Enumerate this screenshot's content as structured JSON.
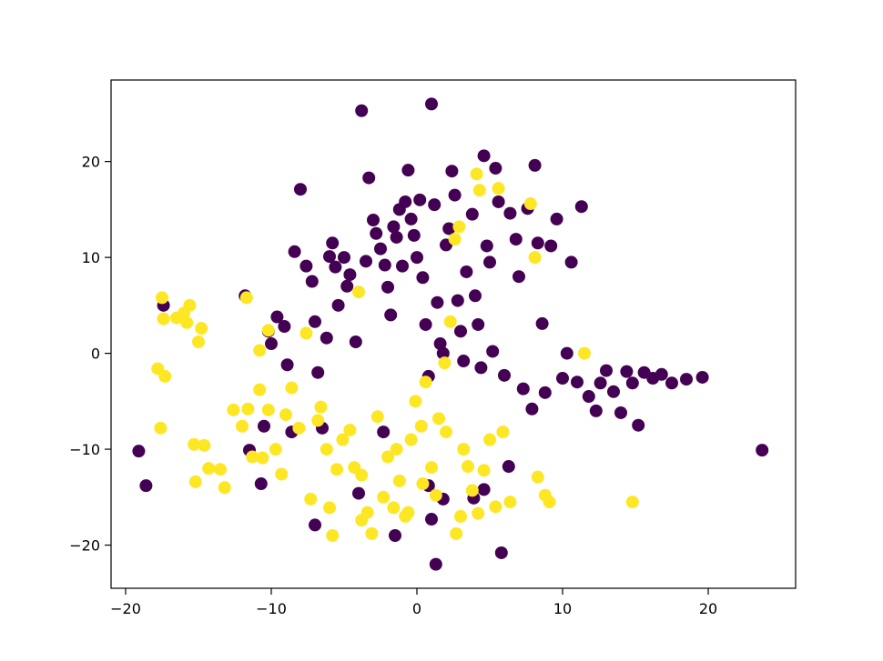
{
  "chart_data": {
    "type": "scatter",
    "title": "",
    "xlabel": "",
    "ylabel": "",
    "xlim": [
      -21,
      26
    ],
    "ylim": [
      -24.5,
      28.5
    ],
    "xticks": [
      -20,
      -10,
      0,
      10,
      20
    ],
    "yticks": [
      -20,
      -10,
      0,
      10,
      20
    ],
    "xtick_labels": [
      "−20",
      "−10",
      "0",
      "10",
      "20"
    ],
    "ytick_labels": [
      "−20",
      "−10",
      "0",
      "10",
      "20"
    ],
    "grid": false,
    "legend": "none",
    "series": [
      {
        "color": "#440154",
        "points": [
          [
            -19.1,
            -10.2
          ],
          [
            -18.6,
            -13.8
          ],
          [
            -17.4,
            5.0
          ],
          [
            -11.8,
            6.0
          ],
          [
            -11.5,
            -10.1
          ],
          [
            -10.7,
            -13.6
          ],
          [
            -10.5,
            -7.6
          ],
          [
            -10.2,
            2.3
          ],
          [
            -10.0,
            1.0
          ],
          [
            -9.6,
            3.8
          ],
          [
            -9.1,
            2.8
          ],
          [
            -8.9,
            -1.2
          ],
          [
            -8.6,
            -8.2
          ],
          [
            -8.4,
            10.6
          ],
          [
            -8.0,
            17.1
          ],
          [
            -7.6,
            9.1
          ],
          [
            -7.2,
            7.5
          ],
          [
            -7.0,
            3.3
          ],
          [
            -6.8,
            -2.0
          ],
          [
            -6.5,
            -7.8
          ],
          [
            -6.2,
            1.6
          ],
          [
            -6.0,
            10.1
          ],
          [
            -5.8,
            11.5
          ],
          [
            -5.6,
            9.0
          ],
          [
            -5.4,
            5.0
          ],
          [
            -5.0,
            10.0
          ],
          [
            -4.8,
            7.0
          ],
          [
            -4.6,
            8.2
          ],
          [
            -4.2,
            1.2
          ],
          [
            -3.8,
            25.3
          ],
          [
            -3.5,
            9.6
          ],
          [
            -3.3,
            18.3
          ],
          [
            -3.0,
            13.9
          ],
          [
            -2.8,
            12.5
          ],
          [
            -2.5,
            10.9
          ],
          [
            -2.2,
            9.2
          ],
          [
            -2.0,
            6.9
          ],
          [
            -1.8,
            4.0
          ],
          [
            -1.6,
            13.2
          ],
          [
            -1.4,
            12.1
          ],
          [
            -1.2,
            15.0
          ],
          [
            -1.0,
            9.1
          ],
          [
            -0.8,
            15.8
          ],
          [
            -0.6,
            19.1
          ],
          [
            -0.4,
            14.0
          ],
          [
            -0.2,
            12.3
          ],
          [
            0.0,
            10.0
          ],
          [
            0.2,
            16.0
          ],
          [
            0.4,
            7.9
          ],
          [
            0.6,
            3.0
          ],
          [
            0.8,
            -2.4
          ],
          [
            1.0,
            26.0
          ],
          [
            1.2,
            15.5
          ],
          [
            1.4,
            5.3
          ],
          [
            1.6,
            1.0
          ],
          [
            1.8,
            0.0
          ],
          [
            2.0,
            11.3
          ],
          [
            2.2,
            13.0
          ],
          [
            2.4,
            19.0
          ],
          [
            2.6,
            16.5
          ],
          [
            2.8,
            5.5
          ],
          [
            3.0,
            2.3
          ],
          [
            3.2,
            -0.8
          ],
          [
            3.4,
            8.5
          ],
          [
            3.8,
            14.5
          ],
          [
            4.0,
            6.0
          ],
          [
            4.2,
            3.0
          ],
          [
            4.4,
            -1.5
          ],
          [
            4.6,
            20.6
          ],
          [
            4.8,
            11.2
          ],
          [
            5.0,
            9.5
          ],
          [
            5.2,
            0.2
          ],
          [
            5.4,
            19.3
          ],
          [
            5.6,
            15.8
          ],
          [
            6.0,
            -2.3
          ],
          [
            6.4,
            14.6
          ],
          [
            6.8,
            11.9
          ],
          [
            7.0,
            8.0
          ],
          [
            7.3,
            -3.7
          ],
          [
            7.6,
            15.1
          ],
          [
            7.9,
            -5.8
          ],
          [
            8.1,
            19.6
          ],
          [
            8.3,
            11.5
          ],
          [
            8.6,
            3.1
          ],
          [
            8.8,
            -4.1
          ],
          [
            9.2,
            11.2
          ],
          [
            9.6,
            14.0
          ],
          [
            10.0,
            -2.6
          ],
          [
            10.3,
            0.0
          ],
          [
            10.6,
            9.5
          ],
          [
            11.0,
            -3.0
          ],
          [
            11.3,
            15.3
          ],
          [
            11.8,
            -4.5
          ],
          [
            12.3,
            -6.0
          ],
          [
            12.6,
            -3.1
          ],
          [
            13.0,
            -1.8
          ],
          [
            13.5,
            -4.0
          ],
          [
            14.0,
            -6.2
          ],
          [
            14.4,
            -1.9
          ],
          [
            14.8,
            -3.1
          ],
          [
            15.2,
            -7.5
          ],
          [
            15.6,
            -2.0
          ],
          [
            16.2,
            -2.6
          ],
          [
            16.8,
            -2.2
          ],
          [
            17.5,
            -3.1
          ],
          [
            18.5,
            -2.7
          ],
          [
            19.6,
            -2.5
          ],
          [
            23.7,
            -10.1
          ],
          [
            1.8,
            -15.2
          ],
          [
            1.3,
            -22.0
          ],
          [
            0.8,
            -13.8
          ],
          [
            -1.5,
            -19.0
          ],
          [
            -2.3,
            -8.2
          ],
          [
            -4.0,
            -14.6
          ],
          [
            -7.0,
            -17.9
          ],
          [
            5.8,
            -20.8
          ],
          [
            4.6,
            -14.2
          ],
          [
            6.3,
            -11.8
          ],
          [
            1.0,
            -17.3
          ],
          [
            3.9,
            -15.1
          ]
        ]
      },
      {
        "color": "#fde725",
        "points": [
          [
            -17.8,
            -1.6
          ],
          [
            -17.5,
            5.8
          ],
          [
            -17.3,
            -2.4
          ],
          [
            -17.4,
            3.6
          ],
          [
            -17.6,
            -7.8
          ],
          [
            -16.5,
            3.7
          ],
          [
            -16.0,
            4.2
          ],
          [
            -15.8,
            3.2
          ],
          [
            -15.6,
            5.0
          ],
          [
            -15.0,
            1.2
          ],
          [
            -14.8,
            2.6
          ],
          [
            -15.3,
            -9.5
          ],
          [
            -15.2,
            -13.4
          ],
          [
            -14.6,
            -9.6
          ],
          [
            -14.3,
            -12.0
          ],
          [
            -13.5,
            -12.1
          ],
          [
            -13.2,
            -14.0
          ],
          [
            -12.6,
            -5.9
          ],
          [
            -12.0,
            -7.6
          ],
          [
            -11.6,
            -5.8
          ],
          [
            -11.3,
            -10.8
          ],
          [
            -10.8,
            -3.8
          ],
          [
            -10.6,
            -10.9
          ],
          [
            -10.2,
            -5.9
          ],
          [
            -9.7,
            -10.0
          ],
          [
            -9.3,
            -12.6
          ],
          [
            -9.0,
            -6.4
          ],
          [
            -8.6,
            -3.6
          ],
          [
            -8.1,
            -7.8
          ],
          [
            -7.6,
            2.1
          ],
          [
            -7.3,
            -15.2
          ],
          [
            -6.8,
            -7.0
          ],
          [
            -6.6,
            -5.6
          ],
          [
            -6.2,
            -10.0
          ],
          [
            -5.8,
            -19.0
          ],
          [
            -5.5,
            -12.1
          ],
          [
            -5.1,
            -9.0
          ],
          [
            -4.6,
            -8.0
          ],
          [
            -4.3,
            -11.9
          ],
          [
            -4.0,
            6.4
          ],
          [
            -3.8,
            -12.7
          ],
          [
            -3.4,
            -16.6
          ],
          [
            -3.1,
            -18.8
          ],
          [
            -2.7,
            -6.6
          ],
          [
            -2.3,
            -15.0
          ],
          [
            -2.0,
            -10.8
          ],
          [
            -1.6,
            -16.1
          ],
          [
            -1.2,
            -13.3
          ],
          [
            -0.8,
            -17.0
          ],
          [
            -0.4,
            -9.0
          ],
          [
            -0.1,
            -5.0
          ],
          [
            0.3,
            -7.6
          ],
          [
            0.6,
            -3.0
          ],
          [
            1.0,
            -11.9
          ],
          [
            1.5,
            -6.8
          ],
          [
            2.0,
            -8.2
          ],
          [
            2.3,
            3.3
          ],
          [
            2.6,
            11.9
          ],
          [
            2.9,
            13.2
          ],
          [
            3.2,
            -10.0
          ],
          [
            3.5,
            -11.8
          ],
          [
            3.8,
            -14.3
          ],
          [
            4.1,
            18.7
          ],
          [
            4.3,
            17.0
          ],
          [
            4.6,
            -12.2
          ],
          [
            5.0,
            -9.0
          ],
          [
            5.4,
            -16.0
          ],
          [
            5.9,
            -8.2
          ],
          [
            6.4,
            -15.5
          ],
          [
            7.8,
            15.6
          ],
          [
            8.1,
            10.0
          ],
          [
            8.3,
            -12.9
          ],
          [
            8.8,
            -14.8
          ],
          [
            9.1,
            -15.5
          ],
          [
            11.5,
            0.0
          ],
          [
            14.8,
            -15.5
          ],
          [
            0.4,
            -13.6
          ],
          [
            1.9,
            -1.0
          ],
          [
            -10.2,
            2.4
          ],
          [
            -10.8,
            0.3
          ],
          [
            -11.7,
            5.8
          ],
          [
            3.0,
            -17.0
          ],
          [
            4.2,
            -16.7
          ],
          [
            1.3,
            -14.8
          ],
          [
            2.7,
            -18.8
          ],
          [
            5.6,
            17.2
          ],
          [
            -1.4,
            -10.0
          ],
          [
            -0.6,
            -16.6
          ],
          [
            -3.8,
            -17.4
          ],
          [
            -6.0,
            -16.1
          ]
        ]
      }
    ]
  }
}
